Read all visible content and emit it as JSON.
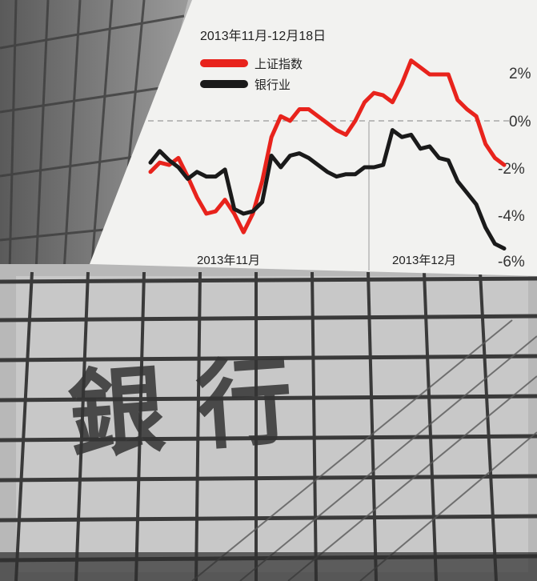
{
  "chart_data": {
    "type": "line",
    "title": "2013年11月-12月18日",
    "x_tick_labels": [
      "2013年11月",
      "2013年12月"
    ],
    "y_tick_labels": [
      "2%",
      "0%",
      "-2%",
      "-4%",
      "-6%"
    ],
    "ylim": [
      -6,
      2.5
    ],
    "grid": "dashed 0% reference line; vertical divider at month boundary",
    "legend_position": "top-left",
    "series": [
      {
        "name": "上证指数",
        "color": "#e8231c",
        "values": [
          -2.2,
          -1.8,
          -1.9,
          -1.6,
          -2.4,
          -3.3,
          -4.0,
          -3.9,
          -3.4,
          -4.0,
          -4.8,
          -4.0,
          -2.6,
          -0.7,
          0.2,
          0.0,
          0.5,
          0.5,
          0.2,
          -0.1,
          -0.4,
          -0.6,
          0.0,
          0.8,
          1.2,
          1.1,
          0.8,
          1.6,
          2.6,
          2.3,
          2.0,
          2.0,
          2.0,
          0.9,
          0.5,
          0.2,
          -1.0,
          -1.6,
          -1.9
        ]
      },
      {
        "name": "银行业",
        "color": "#1a1a1a",
        "values": [
          -1.8,
          -1.3,
          -1.7,
          -2.0,
          -2.5,
          -2.2,
          -2.4,
          -2.4,
          -2.1,
          -3.8,
          -4.0,
          -3.9,
          -3.5,
          -1.5,
          -2.0,
          -1.5,
          -1.4,
          -1.6,
          -1.9,
          -2.2,
          -2.4,
          -2.3,
          -2.3,
          -2.0,
          -2.0,
          -1.9,
          -0.4,
          -0.7,
          -0.6,
          -1.2,
          -1.1,
          -1.6,
          -1.7,
          -2.6,
          -3.1,
          -3.6,
          -4.6,
          -5.3,
          -5.5
        ]
      }
    ]
  },
  "sign": {
    "characters": "銀行"
  },
  "colors": {
    "chart_panel": "#f2f2f0",
    "red_series": "#e8231c",
    "black_series": "#1a1a1a",
    "building_dark": "#3a3a3a"
  }
}
